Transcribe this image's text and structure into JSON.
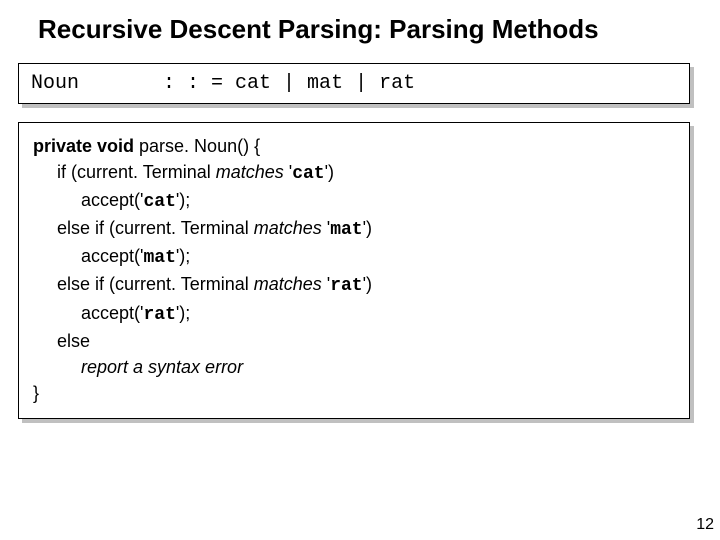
{
  "title": "Recursive Descent Parsing: Parsing Methods",
  "grammar": {
    "lhs": "Noun",
    "op": ": : =",
    "rhs": "cat | mat | rat"
  },
  "code": {
    "l0a": "private void ",
    "l0b": "parse. Noun() {",
    "l1a": "if (current. Terminal ",
    "l1b": "matches",
    "l1c": " '",
    "l1d": "cat",
    "l1e": "')",
    "l2a": "accept('",
    "l2b": "cat",
    "l2c": "');",
    "l3a": "else if (current. Terminal ",
    "l3b": "matches",
    "l3c": " '",
    "l3d": "mat",
    "l3e": "')",
    "l4a": "accept('",
    "l4b": "mat",
    "l4c": "');",
    "l5a": "else if (current. Terminal ",
    "l5b": "matches",
    "l5c": " '",
    "l5d": "rat",
    "l5e": "')",
    "l6a": "accept('",
    "l6b": "rat",
    "l6c": "');",
    "l7": "else",
    "l8": "report a syntax error",
    "l9": "}"
  },
  "page_number": "12",
  "style": {
    "title_fontsize": 26,
    "body_fontsize": 18,
    "mono_fontsize": 20,
    "shadow_color": "#c0c0c0",
    "text_color": "#000000",
    "bg_color": "#ffffff"
  }
}
